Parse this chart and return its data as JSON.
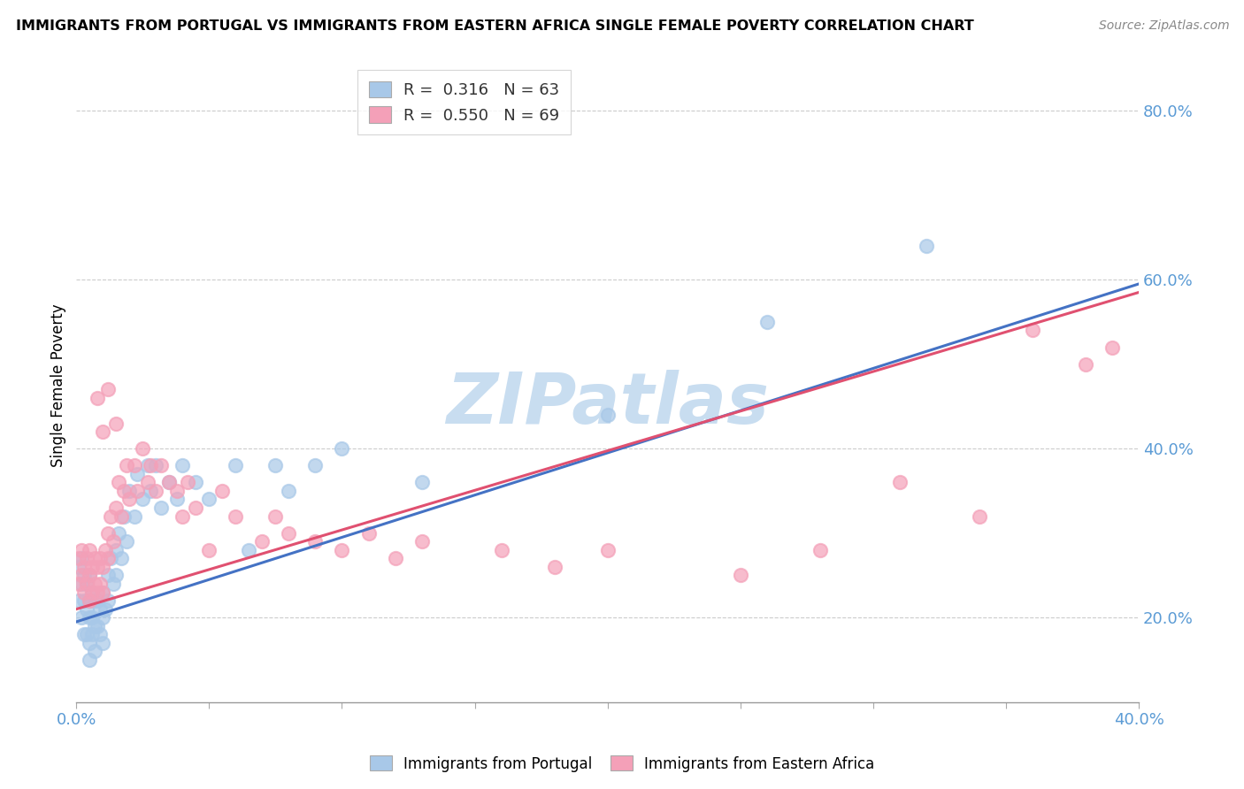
{
  "title": "IMMIGRANTS FROM PORTUGAL VS IMMIGRANTS FROM EASTERN AFRICA SINGLE FEMALE POVERTY CORRELATION CHART",
  "source": "Source: ZipAtlas.com",
  "ylabel_label": "Single Female Poverty",
  "series1_label": "Immigrants from Portugal",
  "series2_label": "Immigrants from Eastern Africa",
  "series1_color": "#a8c8e8",
  "series2_color": "#f4a0b8",
  "trend1_color": "#4472c4",
  "trend2_color": "#e05070",
  "watermark": "ZIPatlas",
  "watermark_color": "#c8ddf0",
  "legend_entries": [
    {
      "label_r": "R = ",
      "r_val": "0.316",
      "label_n": "  N = ",
      "n_val": "63",
      "color": "#a8c8e8"
    },
    {
      "label_r": "R = ",
      "r_val": "0.550",
      "label_n": "  N = ",
      "n_val": "69",
      "color": "#f4a0b8"
    }
  ],
  "xmin": 0.0,
  "xmax": 0.4,
  "ymin": 0.1,
  "ymax": 0.85,
  "blue_points_x": [
    0.001,
    0.001,
    0.002,
    0.002,
    0.002,
    0.003,
    0.003,
    0.003,
    0.004,
    0.004,
    0.004,
    0.005,
    0.005,
    0.005,
    0.005,
    0.005,
    0.006,
    0.006,
    0.006,
    0.007,
    0.007,
    0.007,
    0.008,
    0.008,
    0.009,
    0.009,
    0.01,
    0.01,
    0.01,
    0.011,
    0.012,
    0.012,
    0.013,
    0.014,
    0.015,
    0.015,
    0.016,
    0.017,
    0.018,
    0.019,
    0.02,
    0.022,
    0.023,
    0.025,
    0.027,
    0.028,
    0.03,
    0.032,
    0.035,
    0.038,
    0.04,
    0.045,
    0.05,
    0.06,
    0.065,
    0.075,
    0.08,
    0.09,
    0.1,
    0.13,
    0.2,
    0.26,
    0.32
  ],
  "blue_points_y": [
    0.26,
    0.22,
    0.27,
    0.24,
    0.2,
    0.25,
    0.22,
    0.18,
    0.24,
    0.21,
    0.18,
    0.25,
    0.22,
    0.2,
    0.17,
    0.15,
    0.23,
    0.2,
    0.18,
    0.22,
    0.19,
    0.16,
    0.22,
    0.19,
    0.21,
    0.18,
    0.23,
    0.2,
    0.17,
    0.21,
    0.25,
    0.22,
    0.27,
    0.24,
    0.28,
    0.25,
    0.3,
    0.27,
    0.32,
    0.29,
    0.35,
    0.32,
    0.37,
    0.34,
    0.38,
    0.35,
    0.38,
    0.33,
    0.36,
    0.34,
    0.38,
    0.36,
    0.34,
    0.38,
    0.28,
    0.38,
    0.35,
    0.38,
    0.4,
    0.36,
    0.44,
    0.55,
    0.64
  ],
  "pink_points_x": [
    0.001,
    0.001,
    0.002,
    0.002,
    0.003,
    0.003,
    0.004,
    0.004,
    0.005,
    0.005,
    0.005,
    0.006,
    0.006,
    0.007,
    0.007,
    0.008,
    0.008,
    0.009,
    0.009,
    0.01,
    0.01,
    0.011,
    0.012,
    0.012,
    0.013,
    0.014,
    0.015,
    0.016,
    0.017,
    0.018,
    0.019,
    0.02,
    0.022,
    0.023,
    0.025,
    0.027,
    0.028,
    0.03,
    0.032,
    0.035,
    0.038,
    0.04,
    0.042,
    0.045,
    0.05,
    0.055,
    0.06,
    0.07,
    0.075,
    0.08,
    0.09,
    0.1,
    0.11,
    0.12,
    0.13,
    0.16,
    0.18,
    0.2,
    0.25,
    0.28,
    0.31,
    0.34,
    0.36,
    0.38,
    0.39,
    0.008,
    0.01,
    0.012,
    0.015
  ],
  "pink_points_y": [
    0.27,
    0.24,
    0.28,
    0.25,
    0.26,
    0.23,
    0.27,
    0.24,
    0.28,
    0.25,
    0.22,
    0.26,
    0.23,
    0.27,
    0.24,
    0.26,
    0.23,
    0.27,
    0.24,
    0.26,
    0.23,
    0.28,
    0.3,
    0.27,
    0.32,
    0.29,
    0.33,
    0.36,
    0.32,
    0.35,
    0.38,
    0.34,
    0.38,
    0.35,
    0.4,
    0.36,
    0.38,
    0.35,
    0.38,
    0.36,
    0.35,
    0.32,
    0.36,
    0.33,
    0.28,
    0.35,
    0.32,
    0.29,
    0.32,
    0.3,
    0.29,
    0.28,
    0.3,
    0.27,
    0.29,
    0.28,
    0.26,
    0.28,
    0.25,
    0.28,
    0.36,
    0.32,
    0.54,
    0.5,
    0.52,
    0.46,
    0.42,
    0.47,
    0.43
  ],
  "trend1_x": [
    0.0,
    0.4
  ],
  "trend1_y": [
    0.195,
    0.595
  ],
  "trend2_x": [
    0.0,
    0.4
  ],
  "trend2_y": [
    0.21,
    0.585
  ]
}
